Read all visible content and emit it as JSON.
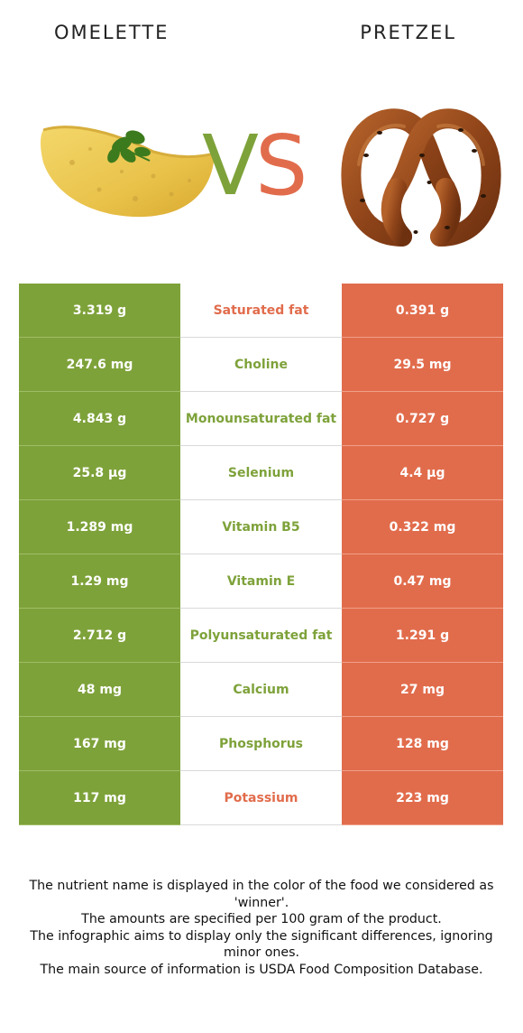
{
  "header": {
    "left_title": "OMELETTE",
    "right_title": "PRETZEL",
    "vs_v": "V",
    "vs_s": "S"
  },
  "colors": {
    "winner_left": "#7ea23a",
    "winner_right": "#e16c4c"
  },
  "rows": [
    {
      "left": "3.319 g",
      "nutrient": "Saturated fat",
      "right": "0.391 g",
      "winner": "right"
    },
    {
      "left": "247.6 mg",
      "nutrient": "Choline",
      "right": "29.5 mg",
      "winner": "left"
    },
    {
      "left": "4.843 g",
      "nutrient": "Monounsaturated fat",
      "right": "0.727 g",
      "winner": "left"
    },
    {
      "left": "25.8 µg",
      "nutrient": "Selenium",
      "right": "4.4 µg",
      "winner": "left"
    },
    {
      "left": "1.289 mg",
      "nutrient": "Vitamin B5",
      "right": "0.322 mg",
      "winner": "left"
    },
    {
      "left": "1.29 mg",
      "nutrient": "Vitamin E",
      "right": "0.47 mg",
      "winner": "left"
    },
    {
      "left": "2.712 g",
      "nutrient": "Polyunsaturated fat",
      "right": "1.291 g",
      "winner": "left"
    },
    {
      "left": "48 mg",
      "nutrient": "Calcium",
      "right": "27 mg",
      "winner": "left"
    },
    {
      "left": "167 mg",
      "nutrient": "Phosphorus",
      "right": "128 mg",
      "winner": "left"
    },
    {
      "left": "117 mg",
      "nutrient": "Potassium",
      "right": "223 mg",
      "winner": "right"
    }
  ],
  "footer": {
    "line1": "The nutrient name is displayed in the color of the food we considered as 'winner'.",
    "line2": "The amounts are specified per 100 gram of the product.",
    "line3": "The infographic aims to display only the significant differences, ignoring minor ones.",
    "line4": "The main source of information is USDA Food Composition Database."
  }
}
